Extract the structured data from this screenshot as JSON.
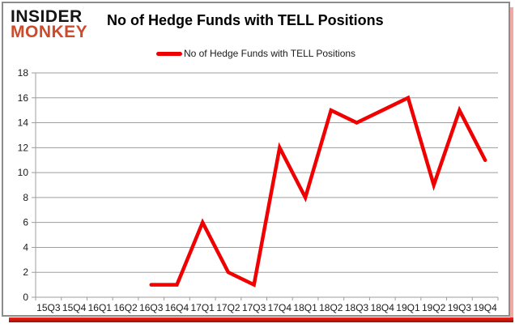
{
  "logo": {
    "line1": "INSIDER",
    "line2": "MONKEY"
  },
  "header": {
    "title": "No of Hedge Funds with TELL Positions"
  },
  "legend": {
    "label": "No of Hedge Funds with TELL Positions",
    "marker_color": "#ee0000"
  },
  "colors": {
    "line": "#f00000",
    "grid": "#9d9d9d",
    "axis_text": "#1a1a1a",
    "logo_insider": "#141414",
    "logo_monkey": "#cd4a2a",
    "shadow": "#e2241a",
    "box_border": "#8c8c8c"
  },
  "chart_data": {
    "type": "line",
    "title": "No of Hedge Funds with TELL Positions",
    "categories": [
      "15Q3",
      "15Q4",
      "16Q1",
      "16Q2",
      "16Q3",
      "16Q4",
      "17Q1",
      "17Q2",
      "17Q3",
      "17Q4",
      "18Q1",
      "18Q2",
      "18Q3",
      "18Q4",
      "19Q1",
      "19Q2",
      "19Q3",
      "19Q4"
    ],
    "series": [
      {
        "name": "No of Hedge Funds with TELL Positions",
        "values": [
          null,
          null,
          null,
          null,
          1,
          1,
          6,
          2,
          1,
          12,
          8,
          15,
          14,
          15,
          16,
          9,
          15,
          11
        ]
      }
    ],
    "xlabel": "",
    "ylabel": "",
    "ylim": [
      0,
      18
    ],
    "ytick_step": 2,
    "grid": true,
    "legend_position": "top-center"
  }
}
